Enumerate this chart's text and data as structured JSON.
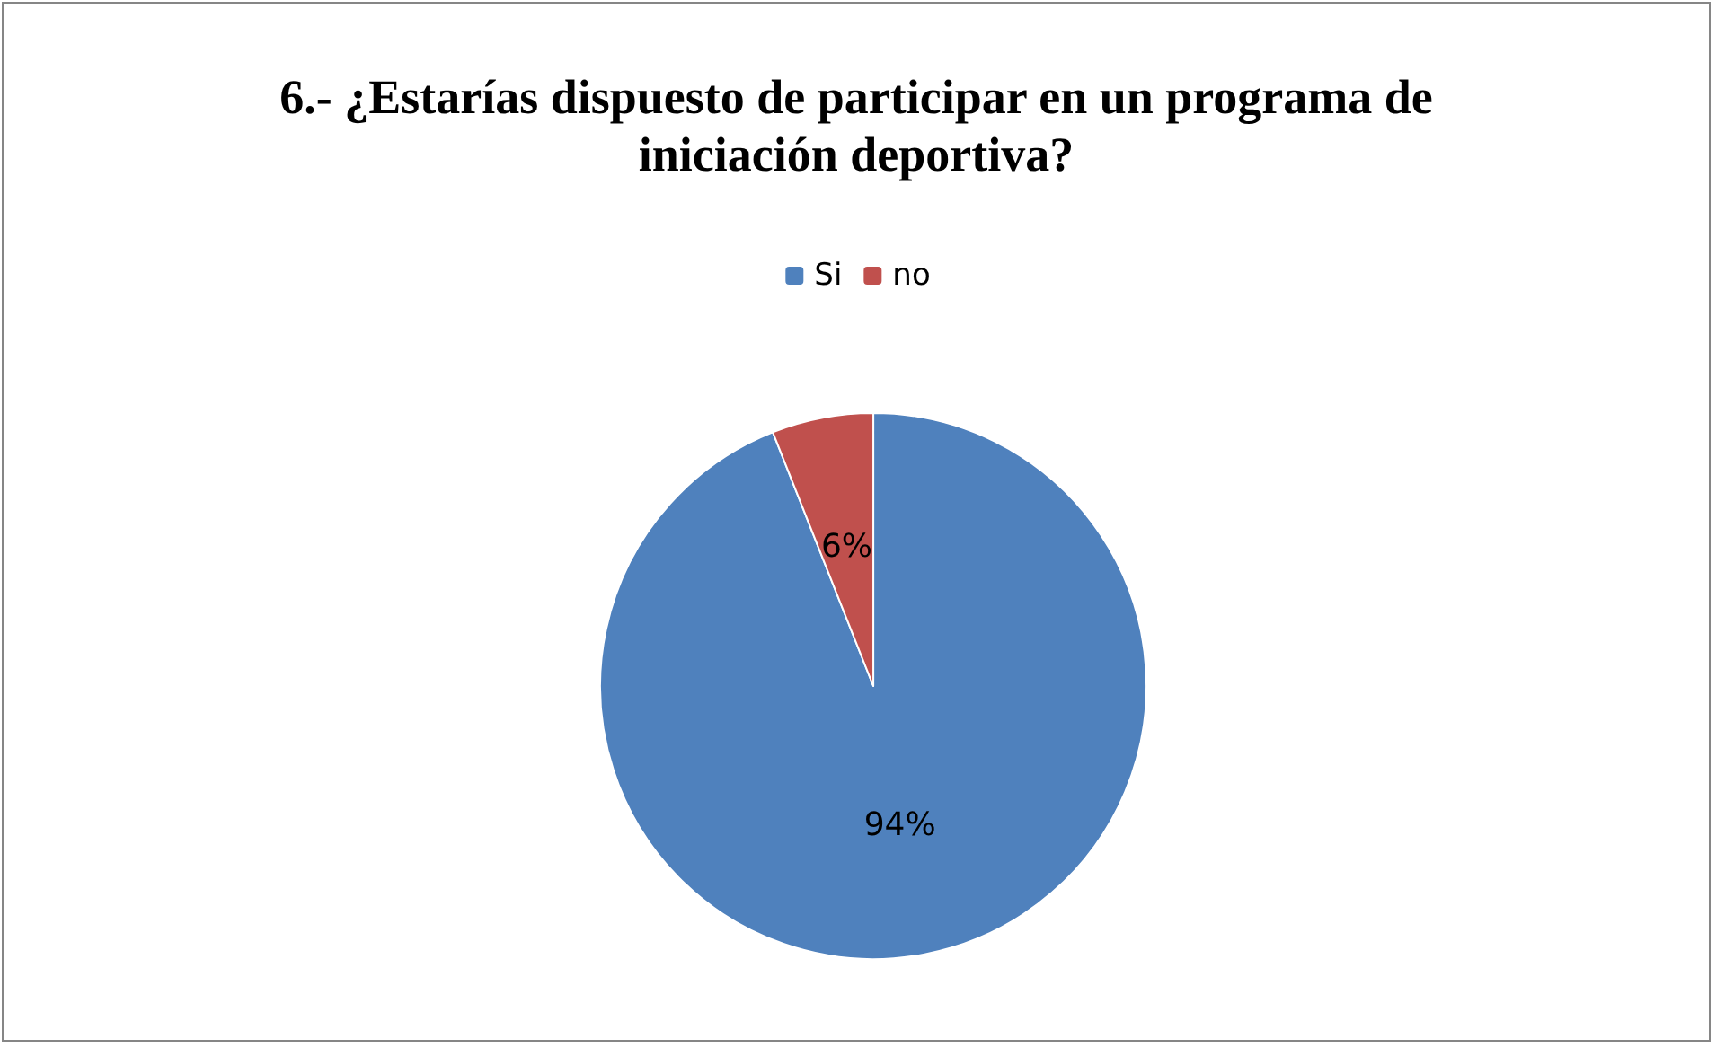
{
  "chart_data": {
    "type": "pie",
    "title": "6.- ¿Estarías dispuesto de participar en un programa de iniciación deportiva?",
    "categories": [
      "Si",
      "no"
    ],
    "values": [
      94,
      6
    ],
    "colors": [
      "#4f81bd",
      "#c0504d"
    ],
    "value_labels": [
      "94%",
      "6%"
    ],
    "legend": "top"
  }
}
